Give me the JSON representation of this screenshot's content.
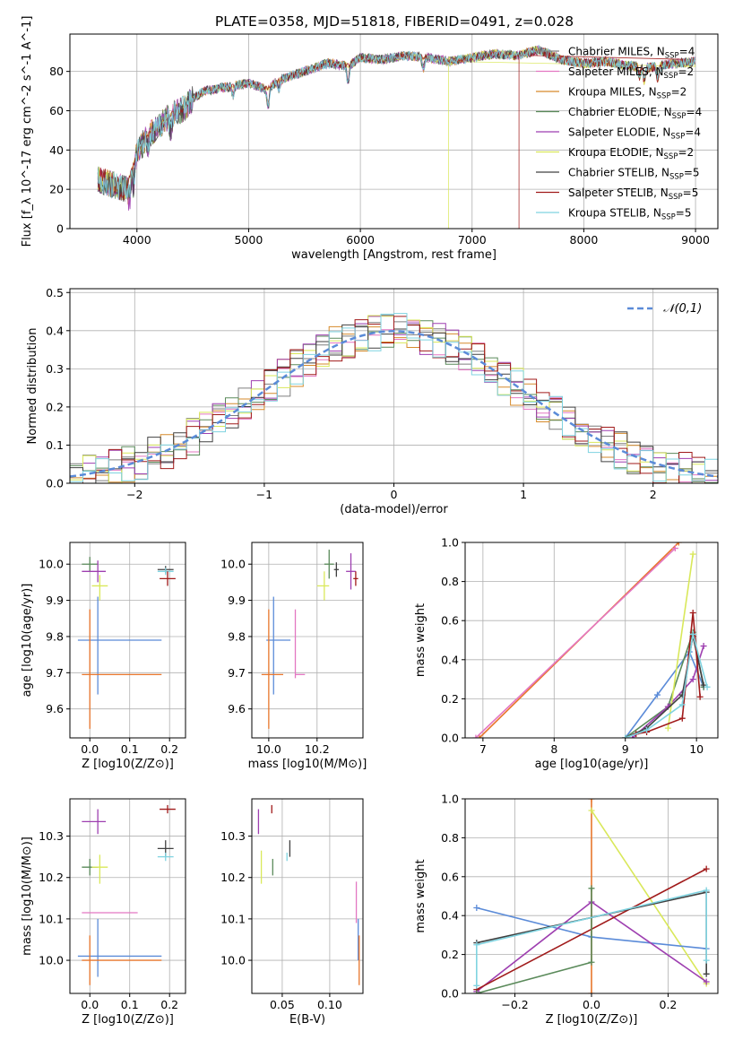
{
  "figure_title": "PLATE=0358, MJD=51818, FIBERID=0491, z=0.028",
  "colors": {
    "chabrier_miles": "#7f7f7f",
    "salpeter_miles": "#e377c2",
    "kroupa_miles": "#d68a2b",
    "chabrier_elodie": "#5a8a5a",
    "salpeter_elodie": "#9e3fb0",
    "kroupa_elodie": "#d9e85a",
    "chabrier_stelib": "#404040",
    "salpeter_stelib": "#a01a1a",
    "kroupa_stelib": "#7fd3e0",
    "blue": "#5b8bd8",
    "orange": "#e8762c",
    "gauss": "#5b8bd8",
    "grid": "#b0b0b0"
  },
  "chart_data": [
    {
      "id": "spectrum",
      "type": "line",
      "title": "PLATE=0358, MJD=51818, FIBERID=0491, z=0.028",
      "xlabel": "wavelength [Angstrom, rest frame]",
      "ylabel": "Flux [f_λ 10^-17 erg cm^-2 s^-1 A^-1]",
      "xlim": [
        3400,
        9200
      ],
      "ylim": [
        0,
        99
      ],
      "xticks": [
        "4000",
        "5000",
        "6000",
        "7000",
        "8000",
        "9000"
      ],
      "yticks": [
        "0",
        "20",
        "40",
        "60",
        "80"
      ],
      "legend": [
        {
          "label": "Chabrier MILES, N_SSP=4",
          "color": "chabrier_miles"
        },
        {
          "label": "Salpeter MILES, N_SSP=2",
          "color": "salpeter_miles"
        },
        {
          "label": "Kroupa MILES, N_SSP=2",
          "color": "kroupa_miles"
        },
        {
          "label": "Chabrier ELODIE, N_SSP=4",
          "color": "chabrier_elodie"
        },
        {
          "label": "Salpeter ELODIE, N_SSP=4",
          "color": "salpeter_elodie"
        },
        {
          "label": "Kroupa ELODIE, N_SSP=2",
          "color": "kroupa_elodie"
        },
        {
          "label": "Chabrier STELIB, N_SSP=5",
          "color": "chabrier_stelib"
        },
        {
          "label": "Salpeter STELIB, N_SSP=5",
          "color": "salpeter_stelib"
        },
        {
          "label": "Kroupa STELIB, N_SSP=5",
          "color": "kroupa_stelib"
        }
      ],
      "continuum": [
        [
          3650,
          25
        ],
        [
          3800,
          22
        ],
        [
          3900,
          20
        ],
        [
          4000,
          38
        ],
        [
          4100,
          48
        ],
        [
          4200,
          52
        ],
        [
          4300,
          58
        ],
        [
          4400,
          60
        ],
        [
          4500,
          66
        ],
        [
          4600,
          70
        ],
        [
          4800,
          72
        ],
        [
          5000,
          74
        ],
        [
          5150,
          71
        ],
        [
          5300,
          76
        ],
        [
          5500,
          80
        ],
        [
          5700,
          84
        ],
        [
          5900,
          83
        ],
        [
          6000,
          87
        ],
        [
          6200,
          86
        ],
        [
          6400,
          88
        ],
        [
          6600,
          87
        ],
        [
          6800,
          85
        ],
        [
          7000,
          87
        ],
        [
          7200,
          89
        ],
        [
          7400,
          88
        ],
        [
          7600,
          91
        ],
        [
          7800,
          86
        ],
        [
          8000,
          84
        ],
        [
          8200,
          85
        ],
        [
          8400,
          83
        ],
        [
          8600,
          82
        ],
        [
          8800,
          84
        ],
        [
          9000,
          85
        ]
      ],
      "dropouts": [
        {
          "model": "kroupa_elodie",
          "x_from": 3900,
          "x_to": 6790
        },
        {
          "model": "salpeter_stelib",
          "x_from": 3900,
          "x_to": 7420
        }
      ]
    },
    {
      "id": "residuals",
      "type": "step",
      "xlabel": "(data-model)/error",
      "ylabel": "Normed distribution",
      "xlim": [
        -2.5,
        2.5
      ],
      "ylim": [
        0,
        0.51
      ],
      "xticks": [
        "−2",
        "−1",
        "0",
        "1",
        "2"
      ],
      "yticks": [
        "0.0",
        "0.1",
        "0.2",
        "0.3",
        "0.4",
        "0.5"
      ],
      "legend": [
        {
          "label": "N(0,1)",
          "color": "gauss"
        }
      ],
      "bin_width": 0.1
    },
    {
      "id": "age_vs_Z",
      "type": "errorbar",
      "xlabel": "Z [log10(Z/Z⊙)]",
      "ylabel": "age [log10(age/yr)]",
      "xlim": [
        -0.05,
        0.24
      ],
      "ylim": [
        9.52,
        10.06
      ],
      "xticks": [
        "0.0",
        "0.1",
        "0.2"
      ],
      "yticks": [
        "9.6",
        "9.7",
        "9.8",
        "9.9",
        "10.0"
      ],
      "points": [
        {
          "x": 0.0,
          "y": 10.0,
          "xerr": [
            0.02,
            0.02
          ],
          "yerr": [
            0.02,
            0.02
          ],
          "color": "chabrier_elodie"
        },
        {
          "x": 0.02,
          "y": 9.98,
          "xerr": [
            0.04,
            0.02
          ],
          "yerr": [
            0.03,
            0.03
          ],
          "color": "salpeter_elodie"
        },
        {
          "x": 0.025,
          "y": 9.94,
          "xerr": [
            0.02,
            0.02
          ],
          "yerr": [
            0.04,
            0.03
          ],
          "color": "kroupa_elodie"
        },
        {
          "x": 0.02,
          "y": 9.79,
          "xerr": [
            0.05,
            0.16
          ],
          "yerr": [
            0.15,
            0.12
          ],
          "color": "blue"
        },
        {
          "x": 0.0,
          "y": 9.695,
          "xerr": [
            0.02,
            0.18
          ],
          "yerr": [
            0.15,
            0.18
          ],
          "color": "orange"
        },
        {
          "x": 0.19,
          "y": 9.985,
          "xerr": [
            0.02,
            0.02
          ],
          "yerr": [
            0.01,
            0.01
          ],
          "color": "chabrier_stelib"
        },
        {
          "x": 0.19,
          "y": 9.98,
          "xerr": [
            0.02,
            0.02
          ],
          "yerr": [
            0.01,
            0.01
          ],
          "color": "kroupa_stelib"
        },
        {
          "x": 0.195,
          "y": 9.96,
          "xerr": [
            0.02,
            0.02
          ],
          "yerr": [
            0.02,
            0.02
          ],
          "color": "salpeter_stelib"
        }
      ]
    },
    {
      "id": "age_vs_mass",
      "type": "errorbar",
      "xlabel": "mass [log10(M/M⊙)]",
      "ylabel": "",
      "xlim": [
        9.93,
        10.39
      ],
      "ylim": [
        9.52,
        10.06
      ],
      "xticks": [
        "10.0",
        "10.2"
      ],
      "yticks": [
        "9.6",
        "9.7",
        "9.8",
        "9.9",
        "10.0"
      ],
      "points": [
        {
          "x": 10.25,
          "y": 10.0,
          "xerr": [
            0.02,
            0.02
          ],
          "yerr": [
            0.04,
            0.04
          ],
          "color": "chabrier_elodie"
        },
        {
          "x": 10.23,
          "y": 9.94,
          "xerr": [
            0.03,
            0.02
          ],
          "yerr": [
            0.04,
            0.04
          ],
          "color": "kroupa_elodie"
        },
        {
          "x": 10.28,
          "y": 9.985,
          "xerr": [
            0.01,
            0.01
          ],
          "yerr": [
            0.02,
            0.02
          ],
          "color": "chabrier_stelib"
        },
        {
          "x": 10.34,
          "y": 9.98,
          "xerr": [
            0.02,
            0.02
          ],
          "yerr": [
            0.05,
            0.05
          ],
          "color": "salpeter_elodie"
        },
        {
          "x": 10.36,
          "y": 9.96,
          "xerr": [
            0.01,
            0.01
          ],
          "yerr": [
            0.02,
            0.02
          ],
          "color": "salpeter_stelib"
        },
        {
          "x": 10.02,
          "y": 9.79,
          "xerr": [
            0.03,
            0.07
          ],
          "yerr": [
            0.15,
            0.12
          ],
          "color": "blue"
        },
        {
          "x": 10.0,
          "y": 9.695,
          "xerr": [
            0.03,
            0.06
          ],
          "yerr": [
            0.15,
            0.18
          ],
          "color": "orange"
        },
        {
          "x": 10.11,
          "y": 9.695,
          "xerr": [
            0.0,
            0.04
          ],
          "yerr": [
            0.01,
            0.18
          ],
          "color": "salpeter_miles"
        }
      ]
    },
    {
      "id": "weight_vs_age",
      "type": "line",
      "xlabel": "age [log10(age/yr)]",
      "ylabel": "mass weight",
      "xlim": [
        6.75,
        10.3
      ],
      "ylim": [
        0,
        1.0
      ],
      "xticks": [
        "7",
        "8",
        "9",
        "10"
      ],
      "yticks": [
        "0.0",
        "0.2",
        "0.4",
        "0.6",
        "0.8",
        "1.0"
      ],
      "series": [
        {
          "color": "orange",
          "x": [
            6.95,
            9.75
          ],
          "y": [
            0.0,
            1.0
          ]
        },
        {
          "color": "salpeter_miles",
          "x": [
            6.9,
            9.7
          ],
          "y": [
            0.0,
            0.97
          ]
        },
        {
          "color": "blue",
          "x": [
            9.0,
            9.45,
            9.9,
            10.1
          ],
          "y": [
            0.0,
            0.22,
            0.44,
            0.26
          ]
        },
        {
          "color": "chabrier_elodie",
          "x": [
            9.0,
            9.6,
            9.95,
            10.1
          ],
          "y": [
            0.0,
            0.16,
            0.54,
            0.26
          ]
        },
        {
          "color": "salpeter_elodie",
          "x": [
            9.1,
            9.6,
            9.95,
            10.1
          ],
          "y": [
            0.0,
            0.16,
            0.3,
            0.47
          ]
        },
        {
          "color": "kroupa_elodie",
          "x": [
            9.6,
            9.95
          ],
          "y": [
            0.05,
            0.94
          ]
        },
        {
          "color": "chabrier_stelib",
          "x": [
            9.0,
            9.3,
            9.8,
            9.95,
            10.1
          ],
          "y": [
            0.0,
            0.05,
            0.22,
            0.52,
            0.27
          ]
        },
        {
          "color": "salpeter_stelib",
          "x": [
            9.15,
            9.3,
            9.8,
            9.95,
            10.05
          ],
          "y": [
            0.02,
            0.03,
            0.1,
            0.64,
            0.21
          ]
        },
        {
          "color": "kroupa_stelib",
          "x": [
            9.0,
            9.3,
            9.8,
            9.95,
            10.15
          ],
          "y": [
            0.0,
            0.04,
            0.17,
            0.53,
            0.26
          ]
        }
      ]
    },
    {
      "id": "mass_vs_Z",
      "type": "errorbar",
      "xlabel": "Z [log10(Z/Z⊙)]",
      "ylabel": "mass [log10(M/M⊙)]",
      "xlim": [
        -0.05,
        0.24
      ],
      "ylim": [
        9.92,
        10.39
      ],
      "xticks": [
        "0.0",
        "0.1",
        "0.2"
      ],
      "yticks": [
        "10.0",
        "10.1",
        "10.2",
        "10.3"
      ],
      "points": [
        {
          "x": 0.02,
          "y": 10.335,
          "xerr": [
            0.04,
            0.02
          ],
          "yerr": [
            0.03,
            0.03
          ],
          "color": "salpeter_elodie"
        },
        {
          "x": 0.195,
          "y": 10.365,
          "xerr": [
            0.02,
            0.02
          ],
          "yerr": [
            0.01,
            0.01
          ],
          "color": "salpeter_stelib"
        },
        {
          "x": 0.0,
          "y": 10.225,
          "xerr": [
            0.02,
            0.02
          ],
          "yerr": [
            0.02,
            0.02
          ],
          "color": "chabrier_elodie"
        },
        {
          "x": 0.025,
          "y": 10.225,
          "xerr": [
            0.02,
            0.02
          ],
          "yerr": [
            0.04,
            0.03
          ],
          "color": "kroupa_elodie"
        },
        {
          "x": 0.19,
          "y": 10.27,
          "xerr": [
            0.02,
            0.02
          ],
          "yerr": [
            0.02,
            0.02
          ],
          "color": "chabrier_stelib"
        },
        {
          "x": 0.19,
          "y": 10.25,
          "xerr": [
            0.02,
            0.02
          ],
          "yerr": [
            0.01,
            0.01
          ],
          "color": "kroupa_stelib"
        },
        {
          "x": 0.0,
          "y": 10.115,
          "xerr": [
            0.02,
            0.12
          ],
          "yerr": [
            0.0,
            0.0
          ],
          "color": "salpeter_miles"
        },
        {
          "x": 0.02,
          "y": 10.01,
          "xerr": [
            0.05,
            0.16
          ],
          "yerr": [
            0.05,
            0.09
          ],
          "color": "blue"
        },
        {
          "x": 0.0,
          "y": 10.0,
          "xerr": [
            0.02,
            0.18
          ],
          "yerr": [
            0.06,
            0.06
          ],
          "color": "orange"
        }
      ]
    },
    {
      "id": "mass_vs_ebv",
      "type": "errorbar",
      "xlabel": "E(B-V)",
      "ylabel": "",
      "xlim": [
        0.018,
        0.135
      ],
      "ylim": [
        9.92,
        10.39
      ],
      "xticks": [
        "0.05",
        "0.10"
      ],
      "yticks": [
        "10.0",
        "10.1",
        "10.2",
        "10.3"
      ],
      "points": [
        {
          "x": 0.025,
          "y": 10.335,
          "yerr": [
            0.03,
            0.03
          ],
          "color": "salpeter_elodie"
        },
        {
          "x": 0.039,
          "y": 10.365,
          "yerr": [
            0.01,
            0.01
          ],
          "color": "salpeter_stelib"
        },
        {
          "x": 0.028,
          "y": 10.225,
          "yerr": [
            0.04,
            0.04
          ],
          "color": "kroupa_elodie"
        },
        {
          "x": 0.04,
          "y": 10.225,
          "yerr": [
            0.02,
            0.02
          ],
          "color": "chabrier_elodie"
        },
        {
          "x": 0.055,
          "y": 10.25,
          "yerr": [
            0.01,
            0.01
          ],
          "color": "kroupa_stelib"
        },
        {
          "x": 0.058,
          "y": 10.27,
          "yerr": [
            0.02,
            0.02
          ],
          "color": "chabrier_stelib"
        },
        {
          "x": 0.128,
          "y": 10.14,
          "yerr": [
            0.05,
            0.05
          ],
          "color": "salpeter_miles"
        },
        {
          "x": 0.13,
          "y": 10.05,
          "yerr": [
            0.05,
            0.05
          ],
          "color": "blue"
        },
        {
          "x": 0.131,
          "y": 10.0,
          "yerr": [
            0.06,
            0.06
          ],
          "color": "orange"
        }
      ]
    },
    {
      "id": "weight_vs_Z",
      "type": "line",
      "xlabel": "Z [log10(Z/Z⊙)]",
      "ylabel": "mass weight",
      "xlim": [
        -0.33,
        0.33
      ],
      "ylim": [
        0,
        1.0
      ],
      "xticks": [
        "−0.2",
        "0.0",
        "0.2"
      ],
      "yticks": [
        "0.0",
        "0.2",
        "0.4",
        "0.6",
        "0.8",
        "1.0"
      ],
      "series": [
        {
          "color": "orange",
          "x": [
            0.0,
            0.0
          ],
          "y": [
            0.0,
            1.0
          ]
        },
        {
          "color": "kroupa_elodie",
          "x": [
            0.0,
            0.3
          ],
          "y": [
            0.94,
            0.05
          ]
        },
        {
          "color": "blue",
          "x": [
            -0.3,
            0.0,
            0.3
          ],
          "y": [
            0.44,
            0.29,
            0.23
          ]
        },
        {
          "color": "salpeter_elodie",
          "x": [
            -0.3,
            0.0,
            0.3
          ],
          "y": [
            0.01,
            0.47,
            0.06
          ]
        },
        {
          "color": "salpeter_stelib",
          "x": [
            -0.3,
            0.3
          ],
          "y": [
            0.02,
            0.64
          ]
        },
        {
          "color": "chabrier_elodie",
          "x": [
            -0.3,
            0.0,
            0.0
          ],
          "y": [
            0.0,
            0.16,
            0.54
          ]
        },
        {
          "color": "chabrier_stelib",
          "x": [
            -0.3,
            0.3,
            0.3
          ],
          "y": [
            0.26,
            0.52,
            0.1
          ]
        },
        {
          "color": "kroupa_stelib",
          "x": [
            -0.3,
            -0.3,
            0.3,
            0.3
          ],
          "y": [
            0.04,
            0.25,
            0.53,
            0.17
          ]
        }
      ]
    }
  ]
}
